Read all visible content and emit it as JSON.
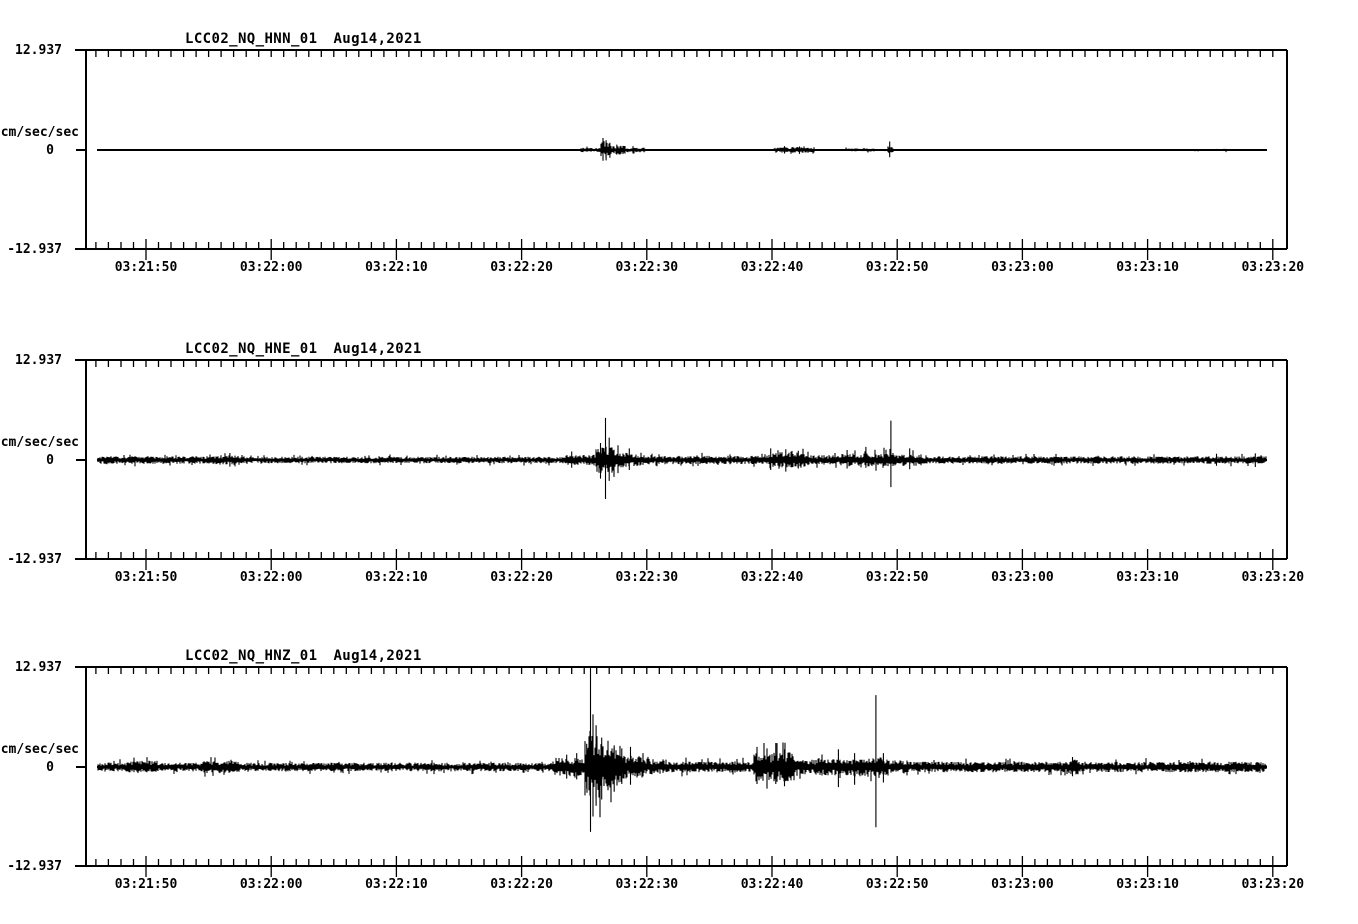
{
  "figure": {
    "background_color": "#ffffff",
    "ink_color": "#000000",
    "kind": "three-component strong-motion seismogram record"
  },
  "chart_data": [
    {
      "type": "line",
      "title": "LCC02_NQ_HNN_01",
      "date": "Aug14,2021",
      "ylabel": "cm/sec/sec",
      "y_axis": {
        "unit": "cm/sec/sec",
        "max_label": "12.937",
        "zero_label": "0",
        "min_label": "-12.937",
        "ylim": [
          -12.937,
          12.937
        ]
      },
      "x_axis": {
        "tick_labels": [
          "03:21:50",
          "03:22:00",
          "03:22:10",
          "03:22:20",
          "03:22:30",
          "03:22:40",
          "03:22:50",
          "03:23:00",
          "03:23:10",
          "03:23:20"
        ],
        "major_interval_sec": 10,
        "minor_interval_sec": 1,
        "trace_start_sec": -3.9,
        "trace_end_sec": 89.5
      },
      "noise_envelope": [
        [
          -3.9,
          34.7,
          0.05
        ],
        [
          34.7,
          36.3,
          0.28
        ],
        [
          36.3,
          37.2,
          1.0
        ],
        [
          37.2,
          38.3,
          0.55
        ],
        [
          38.3,
          39.9,
          0.3
        ],
        [
          39.9,
          50.1,
          0.05
        ],
        [
          50.1,
          53.4,
          0.38
        ],
        [
          53.4,
          55.8,
          0.07
        ],
        [
          55.8,
          58.2,
          0.2
        ],
        [
          58.2,
          59.2,
          0.1
        ],
        [
          59.2,
          59.7,
          0.35
        ],
        [
          59.7,
          83.7,
          0.05
        ],
        [
          83.7,
          84.1,
          0.18
        ],
        [
          84.1,
          85.4,
          0.05
        ],
        [
          85.4,
          86.3,
          0.16
        ],
        [
          86.3,
          89.5,
          0.05
        ]
      ],
      "spikes": [
        [
          36.5,
          1.55,
          1.4
        ],
        [
          36.75,
          1.25,
          1.35
        ],
        [
          37.05,
          0.95,
          1.0
        ],
        [
          37.6,
          0.7,
          0.6
        ],
        [
          38.9,
          0.5,
          0.45
        ],
        [
          51.0,
          0.5,
          0.45
        ],
        [
          52.2,
          0.45,
          0.5
        ],
        [
          59.4,
          1.1,
          0.95
        ]
      ]
    },
    {
      "type": "line",
      "title": "LCC02_NQ_HNE_01",
      "date": "Aug14,2021",
      "ylabel": "cm/sec/sec",
      "y_axis": {
        "unit": "cm/sec/sec",
        "max_label": "12.937",
        "zero_label": "0",
        "min_label": "-12.937",
        "ylim": [
          -12.937,
          12.937
        ]
      },
      "x_axis": {
        "tick_labels": [
          "03:21:50",
          "03:22:00",
          "03:22:10",
          "03:22:20",
          "03:22:30",
          "03:22:40",
          "03:22:50",
          "03:23:00",
          "03:23:10",
          "03:23:20"
        ],
        "major_interval_sec": 10,
        "minor_interval_sec": 1,
        "trace_start_sec": -3.9,
        "trace_end_sec": 89.5
      },
      "noise_envelope": [
        [
          -3.9,
          5.5,
          0.5
        ],
        [
          5.5,
          7.5,
          0.62
        ],
        [
          7.5,
          33.5,
          0.42
        ],
        [
          33.5,
          35.9,
          0.72
        ],
        [
          35.9,
          37.4,
          1.9
        ],
        [
          37.4,
          38.5,
          1.1
        ],
        [
          38.5,
          39.8,
          0.8
        ],
        [
          39.8,
          49.8,
          0.55
        ],
        [
          49.8,
          53.0,
          1.0
        ],
        [
          53.0,
          55.5,
          0.6
        ],
        [
          55.5,
          58.8,
          0.85
        ],
        [
          58.8,
          59.8,
          0.95
        ],
        [
          59.8,
          62.0,
          0.75
        ],
        [
          62.0,
          89.5,
          0.48
        ]
      ],
      "spikes": [
        [
          6.7,
          0.9,
          0.85
        ],
        [
          34.0,
          1.1,
          1.0
        ],
        [
          36.3,
          2.2,
          2.4
        ],
        [
          36.7,
          5.45,
          5.05
        ],
        [
          37.0,
          2.9,
          2.7
        ],
        [
          37.7,
          1.9,
          1.7
        ],
        [
          38.6,
          1.5,
          1.3
        ],
        [
          49.9,
          1.5,
          1.3
        ],
        [
          51.1,
          1.4,
          1.5
        ],
        [
          52.1,
          1.2,
          1.1
        ],
        [
          56.0,
          1.3,
          1.1
        ],
        [
          57.5,
          1.7,
          1.0
        ],
        [
          59.5,
          5.1,
          3.5
        ],
        [
          61.0,
          1.5,
          1.2
        ],
        [
          85.5,
          0.8,
          0.75
        ],
        [
          88.6,
          0.85,
          0.9
        ]
      ]
    },
    {
      "type": "line",
      "title": "LCC02_NQ_HNZ_01",
      "date": "Aug14,2021",
      "ylabel": "cm/sec/sec",
      "y_axis": {
        "unit": "cm/sec/sec",
        "max_label": "12.937",
        "zero_label": "0",
        "min_label": "-12.937",
        "ylim": [
          -12.937,
          12.937
        ]
      },
      "x_axis": {
        "tick_labels": [
          "03:21:50",
          "03:22:00",
          "03:22:10",
          "03:22:20",
          "03:22:30",
          "03:22:40",
          "03:22:50",
          "03:23:00",
          "03:23:10",
          "03:23:20"
        ],
        "major_interval_sec": 10,
        "minor_interval_sec": 1,
        "trace_start_sec": -3.9,
        "trace_end_sec": 89.5
      },
      "noise_envelope": [
        [
          -3.9,
          -1.5,
          0.6
        ],
        [
          -1.5,
          1.0,
          0.8
        ],
        [
          1.0,
          4.5,
          0.55
        ],
        [
          4.5,
          7.5,
          0.8
        ],
        [
          7.5,
          32.5,
          0.55
        ],
        [
          32.5,
          35.0,
          1.2
        ],
        [
          35.0,
          36.4,
          4.2
        ],
        [
          36.4,
          38.0,
          2.9
        ],
        [
          38.0,
          39.7,
          1.5
        ],
        [
          39.7,
          41.5,
          0.95
        ],
        [
          41.5,
          48.5,
          0.72
        ],
        [
          48.5,
          51.8,
          1.9
        ],
        [
          51.8,
          53.5,
          0.95
        ],
        [
          53.5,
          56.5,
          1.1
        ],
        [
          56.5,
          57.8,
          1.3
        ],
        [
          57.8,
          59.3,
          1.25
        ],
        [
          59.3,
          60.8,
          0.85
        ],
        [
          60.8,
          73.5,
          0.68
        ],
        [
          73.5,
          74.6,
          1.0
        ],
        [
          74.6,
          89.5,
          0.68
        ]
      ],
      "spikes": [
        [
          33.6,
          1.6,
          1.5
        ],
        [
          34.4,
          1.8,
          1.6
        ],
        [
          35.2,
          3.0,
          2.8
        ],
        [
          35.5,
          12.8,
          8.4
        ],
        [
          35.7,
          6.8,
          6.4
        ],
        [
          35.95,
          5.4,
          5.0
        ],
        [
          36.4,
          3.8,
          4.2
        ],
        [
          36.9,
          3.4,
          3.0
        ],
        [
          37.4,
          2.8,
          3.2
        ],
        [
          38.0,
          2.4,
          2.2
        ],
        [
          38.7,
          2.6,
          2.3
        ],
        [
          48.8,
          2.6,
          2.2
        ],
        [
          49.6,
          2.4,
          2.8
        ],
        [
          50.3,
          3.1,
          2.2
        ],
        [
          51.0,
          2.3,
          2.5
        ],
        [
          55.3,
          2.3,
          2.6
        ],
        [
          56.6,
          1.8,
          2.3
        ],
        [
          58.3,
          9.3,
          7.8
        ],
        [
          58.9,
          1.8,
          2.0
        ],
        [
          74.0,
          1.3,
          1.2
        ]
      ]
    }
  ]
}
